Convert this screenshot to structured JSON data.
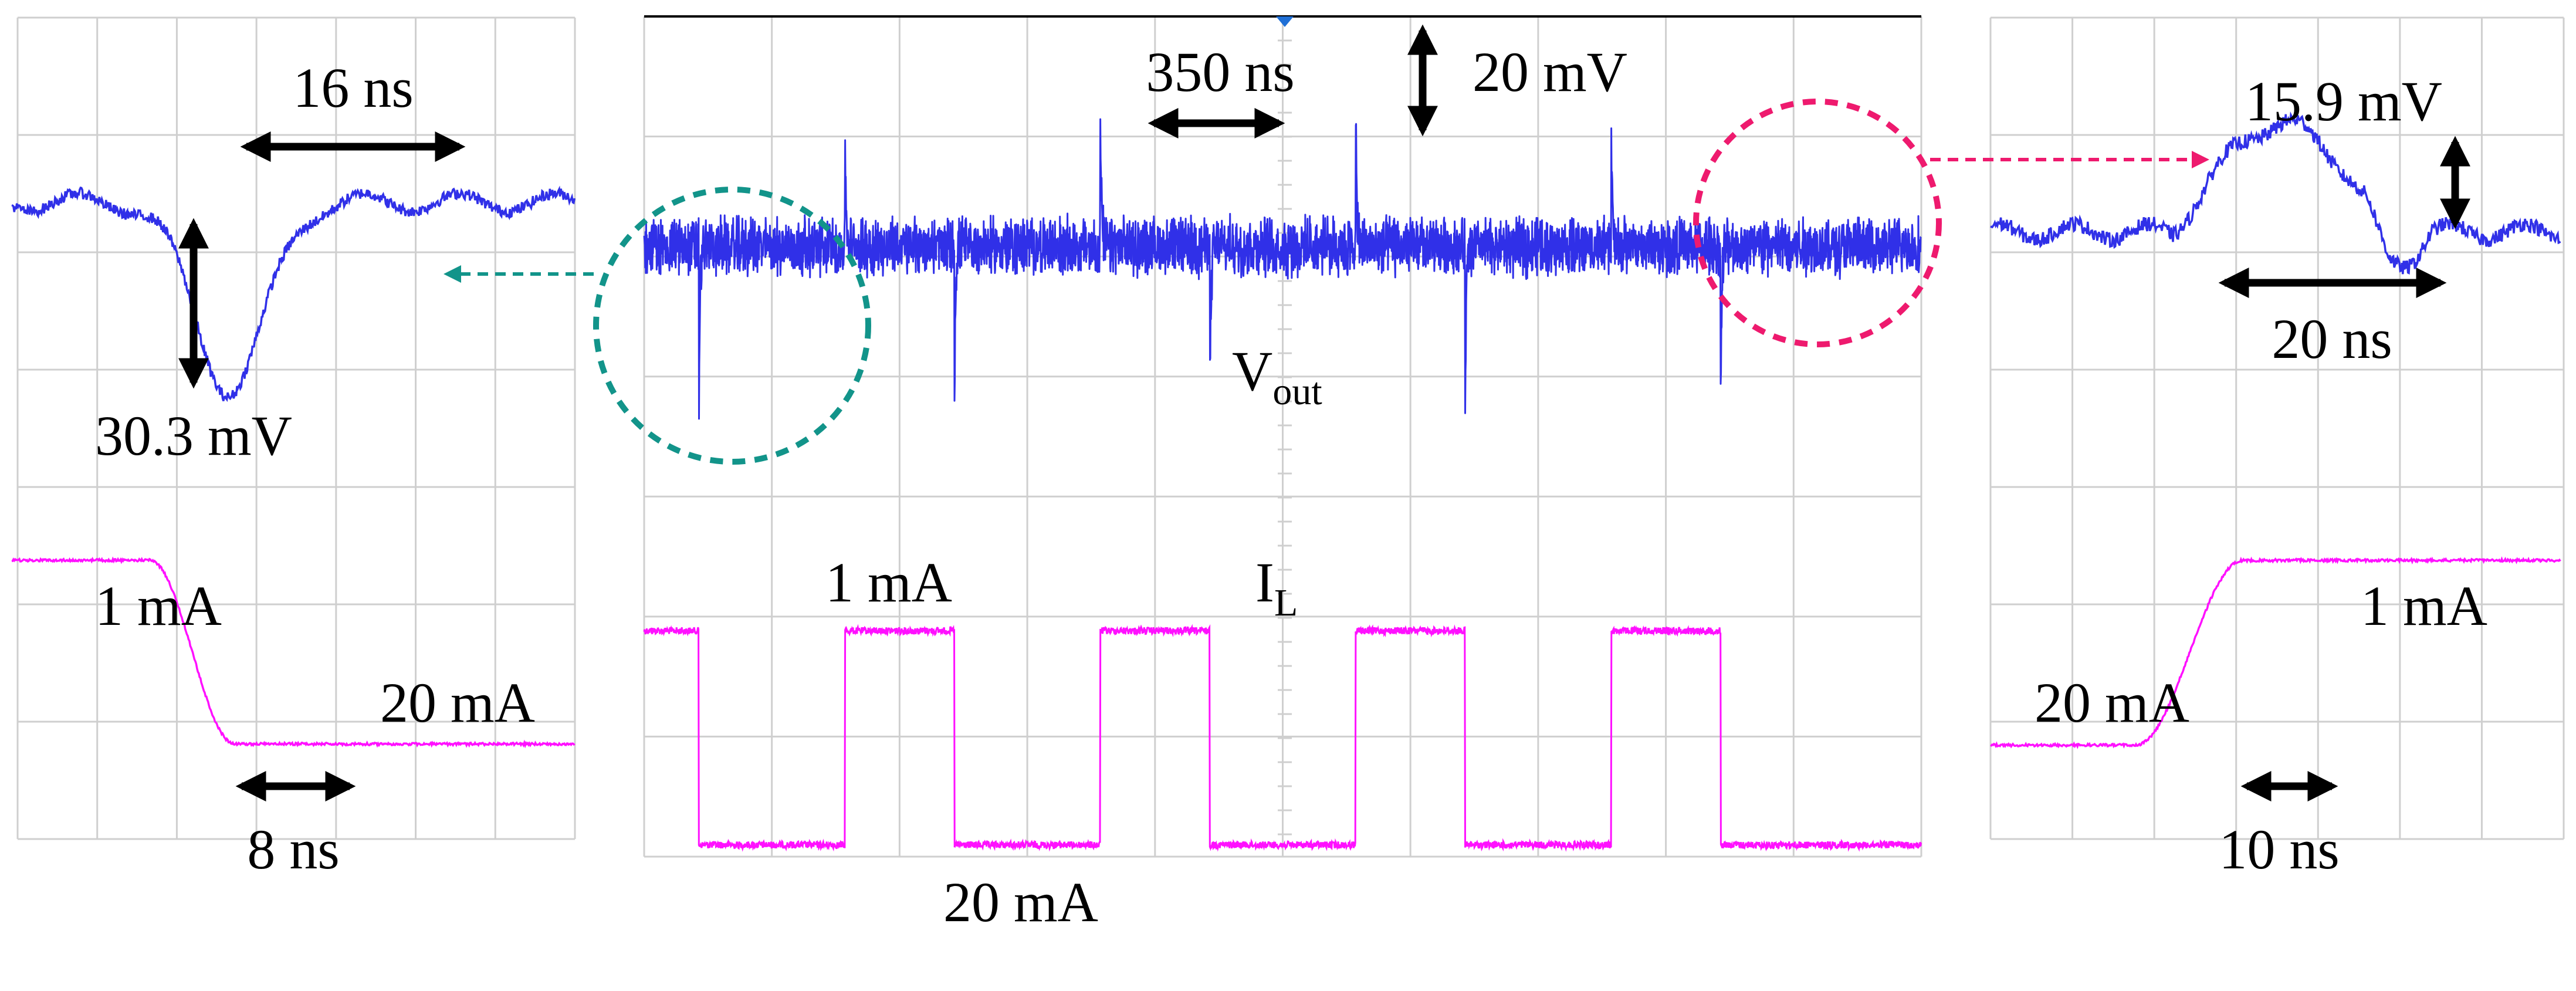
{
  "chart_data": {
    "type": "line",
    "title": "",
    "colors": {
      "vout": "#3030e8",
      "il": "#ff10ff",
      "teal": "#12948a",
      "pink": "#ee1a6e",
      "arrow": "#000000"
    },
    "main": {
      "timebase_label": "350 ns",
      "vscale_label": "20 mV",
      "vout_label": {
        "main": "V",
        "sub": "out"
      },
      "il_label": {
        "main": "I",
        "sub": "L"
      },
      "il_high_label": "1 mA",
      "il_low_label": "20 mA",
      "il_high_value_mA": 1,
      "il_low_value_mA": 20,
      "x_range_ns": [
        0,
        3500
      ],
      "load_step_times_ns": [
        150,
        550,
        850,
        1250,
        1550,
        1950,
        2250,
        2650,
        2950
      ],
      "vout_undershoot_mV": -30.3,
      "vout_overshoot_mV": 15.9
    },
    "left_zoom": {
      "width_label": "16 ns",
      "depth_label": "30.3 mV",
      "undershoot_duration_ns": 16,
      "undershoot_mV": 30.3,
      "il_start_label": "1 mA",
      "il_end_label": "20 mA",
      "rise_label": "8 ns",
      "transition_ns": 8
    },
    "right_zoom": {
      "height_label": "15.9 mV",
      "width_label": "20 ns",
      "overshoot_mV": 15.9,
      "overshoot_duration_ns": 20,
      "il_start_label": "20 mA",
      "il_end_label": "1 mA",
      "fall_label": "10 ns",
      "transition_ns": 10
    }
  }
}
